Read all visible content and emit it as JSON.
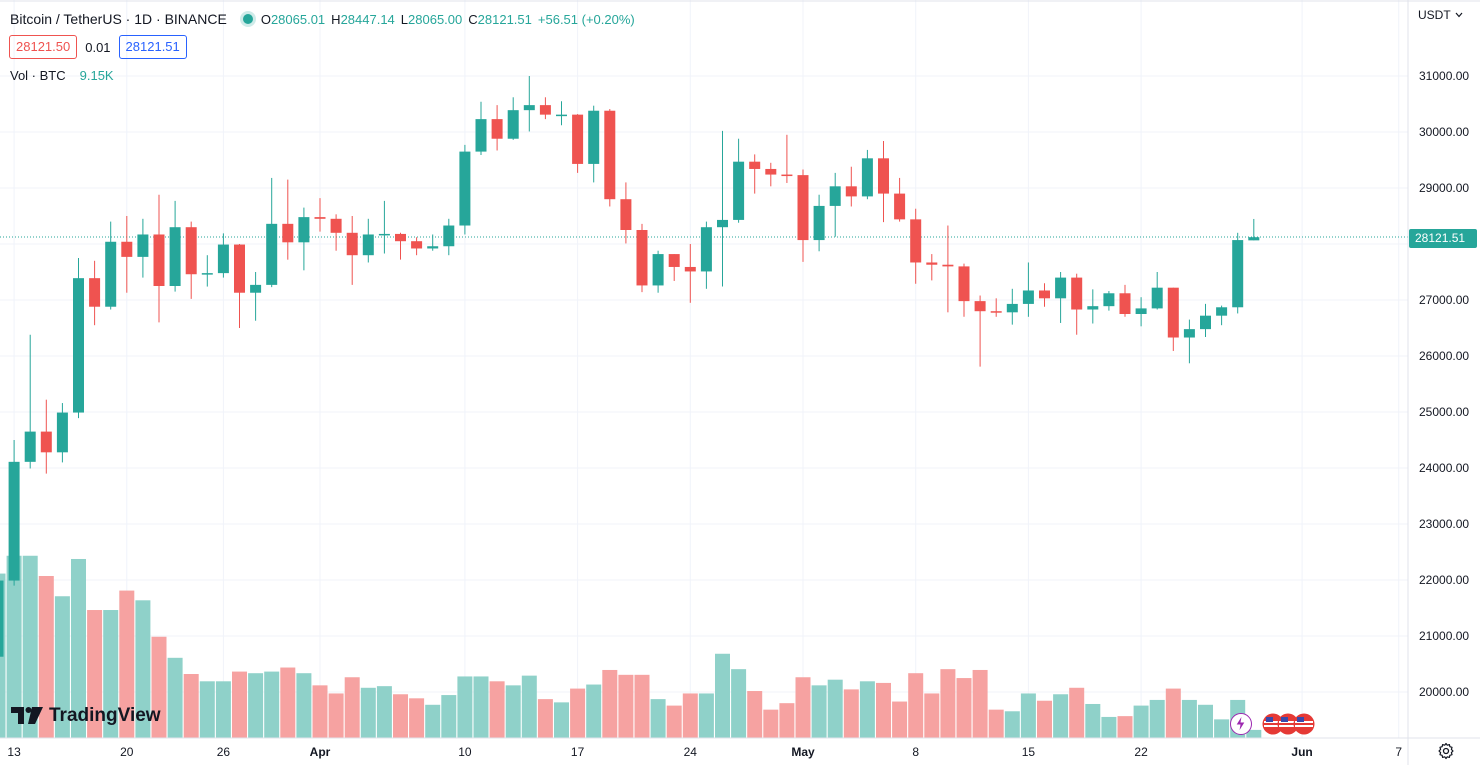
{
  "header": {
    "symbol": "Bitcoin / TetherUS · 1D · BINANCE",
    "ohlc": {
      "o_label": "O",
      "o": "28065.01",
      "h_label": "H",
      "h": "28447.14",
      "l_label": "L",
      "l": "28065.00",
      "c_label": "C",
      "c": "28121.51",
      "change": "+56.51 (+0.20%)"
    },
    "sell_price": "28121.50",
    "spread": "0.01",
    "buy_price": "28121.51",
    "volume_label": "Vol · BTC",
    "volume_value": "9.15K",
    "currency": "USDT"
  },
  "last_price_tag": "28121.51",
  "logo_text": "TradingView",
  "colors": {
    "up": "#26a69a",
    "down": "#ef5350",
    "up_volume": "#8fd1c9",
    "down_volume": "#f6a2a1"
  },
  "icons": {
    "settings": "gear-icon",
    "currency_dropdown": "chevron-down-icon",
    "event_lightning": "lightning-icon",
    "event_us": "us-flag-icon"
  },
  "chart_data": {
    "type": "candlestick",
    "symbol": "BTCUSDT",
    "interval": "1D",
    "ylim": [
      19500,
      31500
    ],
    "price_ticks": [
      "31000.00",
      "30000.00",
      "29000.00",
      "28000.00",
      "27000.00",
      "26000.00",
      "25000.00",
      "24000.00",
      "23000.00",
      "22000.00",
      "21000.00",
      "20000.00"
    ],
    "time_ticks": [
      {
        "label": "13",
        "bold": false
      },
      {
        "label": "20",
        "bold": false
      },
      {
        "label": "26",
        "bold": false
      },
      {
        "label": "Apr",
        "bold": true
      },
      {
        "label": "10",
        "bold": false
      },
      {
        "label": "17",
        "bold": false
      },
      {
        "label": "24",
        "bold": false
      },
      {
        "label": "May",
        "bold": true
      },
      {
        "label": "8",
        "bold": false
      },
      {
        "label": "15",
        "bold": false
      },
      {
        "label": "22",
        "bold": false
      },
      {
        "label": "Jun",
        "bold": true
      },
      {
        "label": "7",
        "bold": false
      }
    ],
    "candles": [
      {
        "date": "2023-03-12",
        "o": 20630,
        "h": 22200,
        "l": 20600,
        "c": 21990,
        "v": 20.3
      },
      {
        "date": "2023-03-13",
        "o": 21990,
        "h": 24500,
        "l": 21900,
        "c": 24110,
        "v": 22.5
      },
      {
        "date": "2023-03-14",
        "o": 24110,
        "h": 26380,
        "l": 23990,
        "c": 24650,
        "v": 22.5
      },
      {
        "date": "2023-03-15",
        "o": 24650,
        "h": 25220,
        "l": 23900,
        "c": 24280,
        "v": 20.0
      },
      {
        "date": "2023-03-16",
        "o": 24280,
        "h": 25160,
        "l": 24100,
        "c": 24990,
        "v": 17.5
      },
      {
        "date": "2023-03-17",
        "o": 24990,
        "h": 27750,
        "l": 24890,
        "c": 27390,
        "v": 22.1
      },
      {
        "date": "2023-03-18",
        "o": 27390,
        "h": 27700,
        "l": 26550,
        "c": 26880,
        "v": 15.8
      },
      {
        "date": "2023-03-19",
        "o": 26880,
        "h": 28400,
        "l": 26830,
        "c": 28040,
        "v": 15.8
      },
      {
        "date": "2023-03-20",
        "o": 28040,
        "h": 28500,
        "l": 27130,
        "c": 27770,
        "v": 18.2
      },
      {
        "date": "2023-03-21",
        "o": 27770,
        "h": 28450,
        "l": 27400,
        "c": 28170,
        "v": 17.0
      },
      {
        "date": "2023-03-22",
        "o": 28170,
        "h": 28880,
        "l": 26600,
        "c": 27250,
        "v": 12.5
      },
      {
        "date": "2023-03-23",
        "o": 27250,
        "h": 28770,
        "l": 27150,
        "c": 28300,
        "v": 9.9
      },
      {
        "date": "2023-03-24",
        "o": 28300,
        "h": 28400,
        "l": 27020,
        "c": 27460,
        "v": 7.9
      },
      {
        "date": "2023-03-25",
        "o": 27460,
        "h": 27800,
        "l": 27240,
        "c": 27480,
        "v": 7.0
      },
      {
        "date": "2023-03-26",
        "o": 27480,
        "h": 28190,
        "l": 27400,
        "c": 27990,
        "v": 7.0
      },
      {
        "date": "2023-03-27",
        "o": 27990,
        "h": 28000,
        "l": 26500,
        "c": 27130,
        "v": 8.2
      },
      {
        "date": "2023-03-28",
        "o": 27130,
        "h": 27500,
        "l": 26630,
        "c": 27270,
        "v": 8.0
      },
      {
        "date": "2023-03-29",
        "o": 27270,
        "h": 29180,
        "l": 27230,
        "c": 28360,
        "v": 8.2
      },
      {
        "date": "2023-03-30",
        "o": 28360,
        "h": 29150,
        "l": 27720,
        "c": 28030,
        "v": 8.7
      },
      {
        "date": "2023-03-31",
        "o": 28030,
        "h": 28650,
        "l": 27530,
        "c": 28480,
        "v": 8.0
      },
      {
        "date": "2023-04-01",
        "o": 28480,
        "h": 28820,
        "l": 28220,
        "c": 28450,
        "v": 6.5
      },
      {
        "date": "2023-04-02",
        "o": 28450,
        "h": 28530,
        "l": 27880,
        "c": 28200,
        "v": 5.5
      },
      {
        "date": "2023-04-03",
        "o": 28200,
        "h": 28500,
        "l": 27270,
        "c": 27800,
        "v": 7.5
      },
      {
        "date": "2023-04-04",
        "o": 27800,
        "h": 28450,
        "l": 27670,
        "c": 28170,
        "v": 6.2
      },
      {
        "date": "2023-04-05",
        "o": 28170,
        "h": 28770,
        "l": 27830,
        "c": 28180,
        "v": 6.4
      },
      {
        "date": "2023-04-06",
        "o": 28180,
        "h": 28200,
        "l": 27720,
        "c": 28050,
        "v": 5.4
      },
      {
        "date": "2023-04-07",
        "o": 28050,
        "h": 28120,
        "l": 27800,
        "c": 27920,
        "v": 4.9
      },
      {
        "date": "2023-04-08",
        "o": 27920,
        "h": 28170,
        "l": 27880,
        "c": 27960,
        "v": 4.1
      },
      {
        "date": "2023-04-09",
        "o": 27960,
        "h": 28450,
        "l": 27800,
        "c": 28330,
        "v": 5.3
      },
      {
        "date": "2023-04-10",
        "o": 28330,
        "h": 29770,
        "l": 28170,
        "c": 29650,
        "v": 7.6
      },
      {
        "date": "2023-04-11",
        "o": 29650,
        "h": 30540,
        "l": 29590,
        "c": 30230,
        "v": 7.6
      },
      {
        "date": "2023-04-12",
        "o": 30230,
        "h": 30480,
        "l": 29670,
        "c": 29880,
        "v": 7.0
      },
      {
        "date": "2023-04-13",
        "o": 29880,
        "h": 30620,
        "l": 29860,
        "c": 30390,
        "v": 6.5
      },
      {
        "date": "2023-04-14",
        "o": 30390,
        "h": 31000,
        "l": 30010,
        "c": 30480,
        "v": 7.7
      },
      {
        "date": "2023-04-15",
        "o": 30480,
        "h": 30620,
        "l": 30230,
        "c": 30310,
        "v": 4.8
      },
      {
        "date": "2023-04-16",
        "o": 30310,
        "h": 30550,
        "l": 30120,
        "c": 30310,
        "v": 4.4
      },
      {
        "date": "2023-04-17",
        "o": 30310,
        "h": 30320,
        "l": 29270,
        "c": 29430,
        "v": 6.1
      },
      {
        "date": "2023-04-18",
        "o": 29430,
        "h": 30470,
        "l": 29100,
        "c": 30380,
        "v": 6.6
      },
      {
        "date": "2023-04-19",
        "o": 30380,
        "h": 30410,
        "l": 28670,
        "c": 28800,
        "v": 8.4
      },
      {
        "date": "2023-04-20",
        "o": 28800,
        "h": 29100,
        "l": 28010,
        "c": 28250,
        "v": 7.8
      },
      {
        "date": "2023-04-21",
        "o": 28250,
        "h": 28360,
        "l": 27140,
        "c": 27260,
        "v": 7.8
      },
      {
        "date": "2023-04-22",
        "o": 27260,
        "h": 27880,
        "l": 27130,
        "c": 27820,
        "v": 4.8
      },
      {
        "date": "2023-04-23",
        "o": 27820,
        "h": 27820,
        "l": 27340,
        "c": 27590,
        "v": 4.0
      },
      {
        "date": "2023-04-24",
        "o": 27590,
        "h": 28000,
        "l": 26950,
        "c": 27510,
        "v": 5.5
      },
      {
        "date": "2023-04-25",
        "o": 27510,
        "h": 28400,
        "l": 27200,
        "c": 28300,
        "v": 5.5
      },
      {
        "date": "2023-04-26",
        "o": 28300,
        "h": 30020,
        "l": 27240,
        "c": 28430,
        "v": 10.4
      },
      {
        "date": "2023-04-27",
        "o": 28430,
        "h": 29880,
        "l": 28380,
        "c": 29470,
        "v": 8.5
      },
      {
        "date": "2023-04-28",
        "o": 29470,
        "h": 29600,
        "l": 28900,
        "c": 29340,
        "v": 5.8
      },
      {
        "date": "2023-04-29",
        "o": 29340,
        "h": 29450,
        "l": 29030,
        "c": 29240,
        "v": 3.5
      },
      {
        "date": "2023-04-30",
        "o": 29240,
        "h": 29950,
        "l": 29090,
        "c": 29230,
        "v": 4.3
      },
      {
        "date": "2023-05-01",
        "o": 29230,
        "h": 29330,
        "l": 27680,
        "c": 28070,
        "v": 7.5
      },
      {
        "date": "2023-05-02",
        "o": 28070,
        "h": 28880,
        "l": 27870,
        "c": 28680,
        "v": 6.5
      },
      {
        "date": "2023-05-03",
        "o": 28680,
        "h": 29270,
        "l": 28130,
        "c": 29030,
        "v": 7.2
      },
      {
        "date": "2023-05-04",
        "o": 29030,
        "h": 29380,
        "l": 28670,
        "c": 28850,
        "v": 6.0
      },
      {
        "date": "2023-05-05",
        "o": 28850,
        "h": 29680,
        "l": 28800,
        "c": 29530,
        "v": 7.0
      },
      {
        "date": "2023-05-06",
        "o": 29530,
        "h": 29840,
        "l": 28390,
        "c": 28900,
        "v": 6.8
      },
      {
        "date": "2023-05-07",
        "o": 28900,
        "h": 29180,
        "l": 28400,
        "c": 28440,
        "v": 4.5
      },
      {
        "date": "2023-05-08",
        "o": 28440,
        "h": 28630,
        "l": 27290,
        "c": 27670,
        "v": 8.0
      },
      {
        "date": "2023-05-09",
        "o": 27670,
        "h": 27820,
        "l": 27350,
        "c": 27630,
        "v": 5.5
      },
      {
        "date": "2023-05-10",
        "o": 27630,
        "h": 28330,
        "l": 26780,
        "c": 27600,
        "v": 8.5
      },
      {
        "date": "2023-05-11",
        "o": 27600,
        "h": 27650,
        "l": 26700,
        "c": 26980,
        "v": 7.4
      },
      {
        "date": "2023-05-12",
        "o": 26980,
        "h": 27080,
        "l": 25810,
        "c": 26800,
        "v": 8.4
      },
      {
        "date": "2023-05-13",
        "o": 26800,
        "h": 27030,
        "l": 26700,
        "c": 26780,
        "v": 3.5
      },
      {
        "date": "2023-05-14",
        "o": 26780,
        "h": 27200,
        "l": 26560,
        "c": 26930,
        "v": 3.3
      },
      {
        "date": "2023-05-15",
        "o": 26930,
        "h": 27670,
        "l": 26700,
        "c": 27170,
        "v": 5.5
      },
      {
        "date": "2023-05-16",
        "o": 27170,
        "h": 27300,
        "l": 26880,
        "c": 27030,
        "v": 4.6
      },
      {
        "date": "2023-05-17",
        "o": 27030,
        "h": 27500,
        "l": 26590,
        "c": 27400,
        "v": 5.4
      },
      {
        "date": "2023-05-18",
        "o": 27400,
        "h": 27470,
        "l": 26380,
        "c": 26830,
        "v": 6.2
      },
      {
        "date": "2023-05-19",
        "o": 26830,
        "h": 27190,
        "l": 26580,
        "c": 26890,
        "v": 4.2
      },
      {
        "date": "2023-05-20",
        "o": 26890,
        "h": 27160,
        "l": 26810,
        "c": 27120,
        "v": 2.6
      },
      {
        "date": "2023-05-21",
        "o": 27120,
        "h": 27270,
        "l": 26700,
        "c": 26750,
        "v": 2.7
      },
      {
        "date": "2023-05-22",
        "o": 26750,
        "h": 27050,
        "l": 26530,
        "c": 26850,
        "v": 4.0
      },
      {
        "date": "2023-05-23",
        "o": 26850,
        "h": 27500,
        "l": 26830,
        "c": 27220,
        "v": 4.7
      },
      {
        "date": "2023-05-24",
        "o": 27220,
        "h": 27220,
        "l": 26090,
        "c": 26330,
        "v": 6.1
      },
      {
        "date": "2023-05-25",
        "o": 26330,
        "h": 26650,
        "l": 25870,
        "c": 26480,
        "v": 4.7
      },
      {
        "date": "2023-05-26",
        "o": 26480,
        "h": 26930,
        "l": 26340,
        "c": 26720,
        "v": 4.1
      },
      {
        "date": "2023-05-27",
        "o": 26720,
        "h": 26900,
        "l": 26550,
        "c": 26870,
        "v": 2.3
      },
      {
        "date": "2023-05-28",
        "o": 26870,
        "h": 28200,
        "l": 26760,
        "c": 28070,
        "v": 4.7
      },
      {
        "date": "2023-05-29",
        "o": 28065.01,
        "h": 28447.14,
        "l": 28065.0,
        "c": 28121.51,
        "v": 1.0
      }
    ]
  }
}
